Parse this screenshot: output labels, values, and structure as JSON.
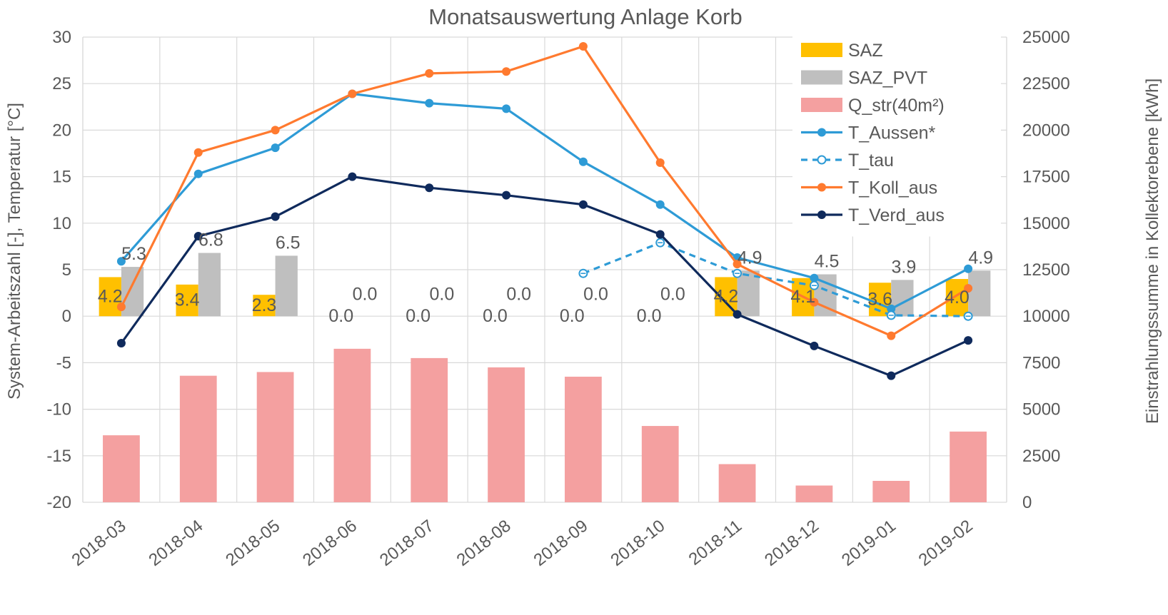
{
  "chart_data": {
    "type": "bar",
    "title": "Monatsauswertung Anlage Korb",
    "ylabel_left": "System-Arbeitszahl [-], Temperatur [°C]",
    "ylabel_right": "Einstrahlungssumme in Kollektorebene [kWh]",
    "categories": [
      "2018-03",
      "2018-04",
      "2018-05",
      "2018-06",
      "2018-07",
      "2018-08",
      "2018-09",
      "2018-10",
      "2018-11",
      "2018-12",
      "2019-01",
      "2019-02"
    ],
    "ylim_left": [
      -20,
      30
    ],
    "yticks_left": [
      "-20",
      "-15",
      "-10",
      "-5",
      "0",
      "5",
      "10",
      "15",
      "20",
      "25",
      "30"
    ],
    "ylim_right": [
      0,
      25000
    ],
    "yticks_right": [
      "0",
      "2500",
      "5000",
      "7500",
      "10000",
      "12500",
      "15000",
      "17500",
      "20000",
      "22500",
      "25000"
    ],
    "grid": true,
    "legend_position": "top-right",
    "series": [
      {
        "name": "SAZ",
        "kind": "bar",
        "axis": "left",
        "color": "#ffc000",
        "values": [
          4.2,
          3.4,
          2.3,
          0.0,
          0.0,
          0.0,
          0.0,
          0.0,
          4.2,
          4.1,
          3.6,
          4.0
        ],
        "labels": [
          "4.2",
          "3.4",
          "2.3",
          "0.0",
          "0.0",
          "0.0",
          "0.0",
          "0.0",
          "4.2",
          "4.1",
          "3.6",
          "4.0"
        ]
      },
      {
        "name": "SAZ_PVT",
        "kind": "bar",
        "axis": "left",
        "color": "#bfbfbf",
        "values": [
          5.3,
          6.8,
          6.5,
          0.0,
          0.0,
          0.0,
          0.0,
          0.0,
          4.9,
          4.5,
          3.9,
          4.9
        ],
        "labels": [
          "5.3",
          "6.8",
          "6.5",
          "0.0",
          "0.0",
          "0.0",
          "0.0",
          "0.0",
          "4.9",
          "4.5",
          "3.9",
          "4.9"
        ]
      },
      {
        "name": "Q_str(40m²)",
        "kind": "bar",
        "axis": "right",
        "color": "#f4a0a0",
        "values": [
          3600,
          6800,
          7000,
          8250,
          7750,
          7250,
          6750,
          4100,
          2050,
          900,
          1150,
          3800
        ]
      },
      {
        "name": "T_Aussen*",
        "kind": "line",
        "axis": "left",
        "color": "#2e9bd6",
        "values": [
          5.9,
          15.3,
          18.1,
          23.9,
          22.9,
          22.3,
          16.6,
          12.0,
          6.3,
          4.1,
          0.8,
          5.1
        ]
      },
      {
        "name": "T_tau",
        "kind": "line",
        "axis": "left",
        "color": "#2e9bd6",
        "dashed": true,
        "values": [
          null,
          null,
          null,
          null,
          null,
          null,
          4.6,
          7.9,
          4.6,
          3.3,
          0.1,
          0.0
        ]
      },
      {
        "name": "T_Koll_aus",
        "kind": "line",
        "axis": "left",
        "color": "#ff7a2f",
        "values": [
          1.0,
          17.6,
          20.0,
          23.9,
          26.1,
          26.3,
          29.0,
          16.5,
          5.6,
          1.5,
          -2.1,
          3.0
        ]
      },
      {
        "name": "T_Verd_aus",
        "kind": "line",
        "axis": "left",
        "color": "#0f2a5c",
        "values": [
          -2.9,
          8.6,
          10.7,
          15.0,
          13.8,
          13.0,
          12.0,
          8.8,
          0.2,
          -3.2,
          -6.4,
          -2.6
        ]
      }
    ]
  }
}
